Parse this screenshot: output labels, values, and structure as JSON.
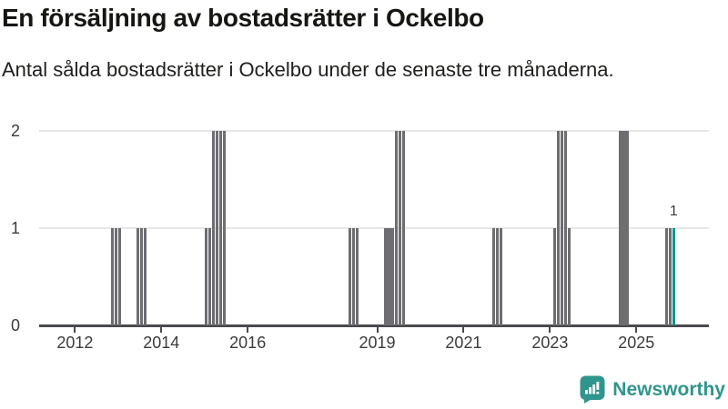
{
  "chart_data": {
    "type": "bar",
    "title": "En försäljning av bostadsrätter i Ockelbo",
    "subtitle": "Antal sålda bostadsrätter i Ockelbo under de senaste tre månaderna.",
    "x_unit": "month",
    "x_tick_years": [
      2012,
      2014,
      2016,
      2019,
      2021,
      2023,
      2025
    ],
    "x_range_years": [
      2011.17,
      2026.68
    ],
    "y_ticks": [
      0,
      1,
      2
    ],
    "ylim": [
      0,
      2
    ],
    "grid": "horizontal",
    "legend": "none",
    "colors": {
      "bar": "#6d6d72",
      "highlight": "#00968c",
      "axis": "#4a4a4e",
      "gridline": "#e7e7e7",
      "tick_text": "#3b3b3b"
    },
    "annotation": {
      "text": "1",
      "month": "2025-11"
    },
    "points": [
      {
        "m": "2012-11",
        "v": 1
      },
      {
        "m": "2012-12",
        "v": 1
      },
      {
        "m": "2013-01",
        "v": 1
      },
      {
        "m": "2013-06",
        "v": 1
      },
      {
        "m": "2013-07",
        "v": 1
      },
      {
        "m": "2013-08",
        "v": 1
      },
      {
        "m": "2015-01",
        "v": 1
      },
      {
        "m": "2015-02",
        "v": 1
      },
      {
        "m": "2015-03",
        "v": 2
      },
      {
        "m": "2015-04",
        "v": 2
      },
      {
        "m": "2015-05",
        "v": 2
      },
      {
        "m": "2015-06",
        "v": 2
      },
      {
        "m": "2018-05",
        "v": 1
      },
      {
        "m": "2018-06",
        "v": 1
      },
      {
        "m": "2018-07",
        "v": 1
      },
      {
        "m": "2019-03",
        "v": 1
      },
      {
        "m": "2019-04",
        "v": 1
      },
      {
        "m": "2019-05",
        "v": 1
      },
      {
        "m": "2019-06",
        "v": 2
      },
      {
        "m": "2019-07",
        "v": 2
      },
      {
        "m": "2019-08",
        "v": 2
      },
      {
        "m": "2021-09",
        "v": 1
      },
      {
        "m": "2021-10",
        "v": 1
      },
      {
        "m": "2021-11",
        "v": 1
      },
      {
        "m": "2023-02",
        "v": 1
      },
      {
        "m": "2023-03",
        "v": 2
      },
      {
        "m": "2023-04",
        "v": 2
      },
      {
        "m": "2023-05",
        "v": 2
      },
      {
        "m": "2023-06",
        "v": 1
      },
      {
        "m": "2024-08",
        "v": 2
      },
      {
        "m": "2024-09",
        "v": 2
      },
      {
        "m": "2024-10",
        "v": 2
      },
      {
        "m": "2025-09",
        "v": 1
      },
      {
        "m": "2025-10",
        "v": 1
      },
      {
        "m": "2025-11",
        "v": 1,
        "highlight": true,
        "label": "1"
      }
    ]
  },
  "branding": {
    "logo_text": "Newsworthy",
    "logo_color": "#2f958d",
    "logo_icon": "bar-chart-speech-bubble"
  }
}
